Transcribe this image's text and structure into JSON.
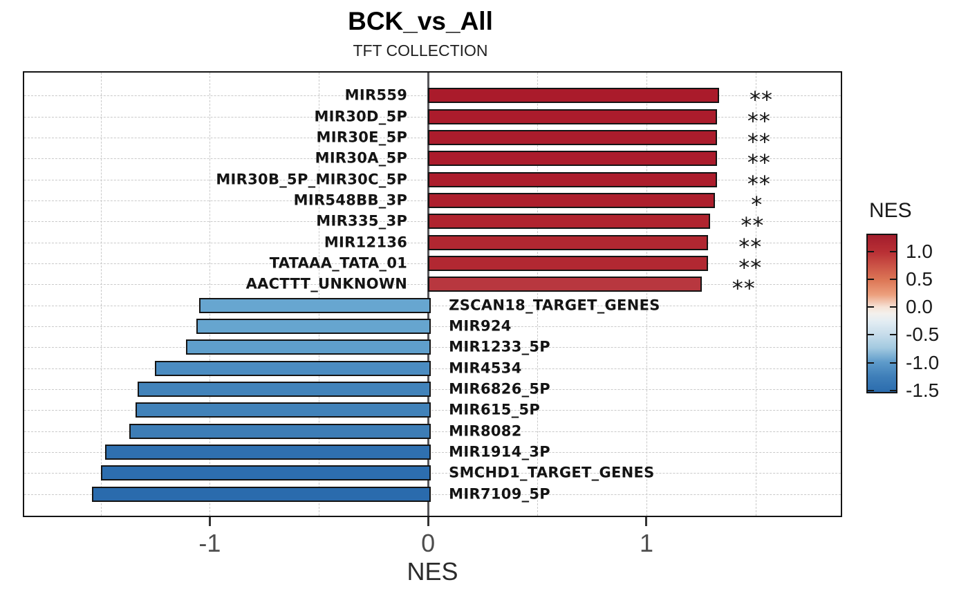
{
  "title": "BCK_vs_All",
  "subtitle": "TFT COLLECTION",
  "chart_data": {
    "type": "bar",
    "orientation": "horizontal",
    "title": "BCK_vs_All",
    "subtitle": "TFT COLLECTION",
    "xlabel": "NES",
    "xlim": [
      -1.85,
      1.89
    ],
    "grid": "dashed",
    "x_ticks": [
      {
        "value": -1,
        "label": "-1"
      },
      {
        "value": 0,
        "label": "0"
      },
      {
        "value": 1,
        "label": "1"
      }
    ],
    "minor_gridlines": [
      -1.5,
      -1,
      -0.5,
      0.5,
      1,
      1.5
    ],
    "bars": [
      {
        "label": "MIR559",
        "nes": 1.32,
        "significance": "**",
        "color": "#aa1b2b"
      },
      {
        "label": "MIR30D_5P",
        "nes": 1.31,
        "significance": "**",
        "color": "#ab1c2c"
      },
      {
        "label": "MIR30E_5P",
        "nes": 1.31,
        "significance": "**",
        "color": "#ab1c2c"
      },
      {
        "label": "MIR30A_5P",
        "nes": 1.31,
        "significance": "**",
        "color": "#ab1c2c"
      },
      {
        "label": "MIR30B_5P_MIR30C_5P",
        "nes": 1.31,
        "significance": "**",
        "color": "#ac1d2c"
      },
      {
        "label": "MIR548BB_3P",
        "nes": 1.3,
        "significance": "*",
        "color": "#ad1f2d"
      },
      {
        "label": "MIR335_3P",
        "nes": 1.28,
        "significance": "**",
        "color": "#b0242f"
      },
      {
        "label": "MIR12136",
        "nes": 1.27,
        "significance": "**",
        "color": "#b12731"
      },
      {
        "label": "TATAAA_TATA_01",
        "nes": 1.27,
        "significance": "**",
        "color": "#b22832"
      },
      {
        "label": "AACTTT_UNKNOWN",
        "nes": 1.24,
        "significance": "**",
        "color": "#b8373f"
      },
      {
        "label": "ZSCAN18_TARGET_GENES",
        "nes": -1.05,
        "significance": "",
        "color": "#67a6d0"
      },
      {
        "label": "MIR924",
        "nes": -1.06,
        "significance": "",
        "color": "#66a5cf"
      },
      {
        "label": "MIR1233_5P",
        "nes": -1.11,
        "significance": "",
        "color": "#5f9fcc"
      },
      {
        "label": "MIR4534",
        "nes": -1.25,
        "significance": "",
        "color": "#4b8cc1"
      },
      {
        "label": "MIR6826_5P",
        "nes": -1.33,
        "significance": "",
        "color": "#4283ba"
      },
      {
        "label": "MIR615_5P",
        "nes": -1.34,
        "significance": "",
        "color": "#4182b9"
      },
      {
        "label": "MIR8082",
        "nes": -1.37,
        "significance": "",
        "color": "#3d7db6"
      },
      {
        "label": "MIR1914_3P",
        "nes": -1.48,
        "significance": "",
        "color": "#2f70b0"
      },
      {
        "label": "SMCHD1_TARGET_GENES",
        "nes": -1.5,
        "significance": "",
        "color": "#2d6eaf"
      },
      {
        "label": "MIR7109_5P",
        "nes": -1.54,
        "significance": "",
        "color": "#2a6bad"
      }
    ],
    "legend": {
      "title": "NES",
      "position": "right",
      "domain": [
        1.32,
        -1.55
      ],
      "ticks": [
        {
          "label": "1.0",
          "value": 1.0
        },
        {
          "label": "0.5",
          "value": 0.5
        },
        {
          "label": "0.0",
          "value": 0.0
        },
        {
          "label": "-0.5",
          "value": -0.5
        },
        {
          "label": "-1.0",
          "value": -1.0
        },
        {
          "label": "-1.5",
          "value": -1.5
        }
      ],
      "gradient": [
        {
          "pos": 0,
          "color": "#a31d2c"
        },
        {
          "pos": 11,
          "color": "#b93035"
        },
        {
          "pos": 20,
          "color": "#cc5547"
        },
        {
          "pos": 29,
          "color": "#dd7857"
        },
        {
          "pos": 38,
          "color": "#ec9f7d"
        },
        {
          "pos": 46,
          "color": "#f6e3d7"
        },
        {
          "pos": 50,
          "color": "#f3f0ec"
        },
        {
          "pos": 55,
          "color": "#e3edf3"
        },
        {
          "pos": 63,
          "color": "#c8ddeb"
        },
        {
          "pos": 72,
          "color": "#a2c9e0"
        },
        {
          "pos": 81,
          "color": "#5e9bca"
        },
        {
          "pos": 90,
          "color": "#3f7fb9"
        },
        {
          "pos": 98,
          "color": "#2f70b0"
        },
        {
          "pos": 100,
          "color": "#2a6bad"
        }
      ]
    }
  }
}
